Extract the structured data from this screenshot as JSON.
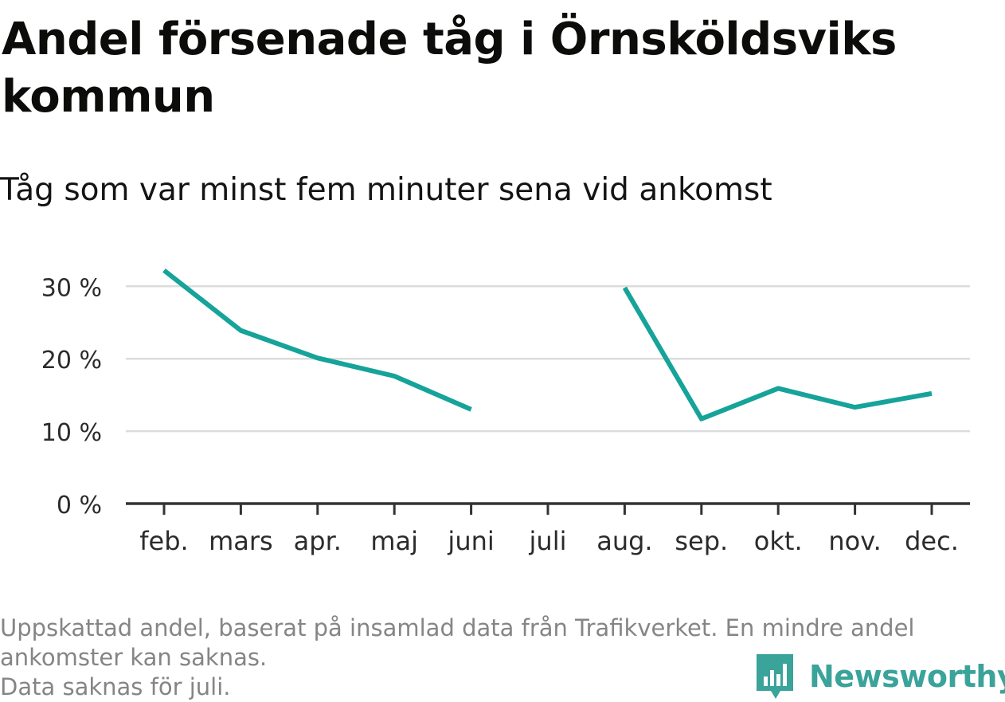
{
  "title": "Andel försenade tåg i Örnsköldsviks kommun",
  "subtitle": "Tåg som var minst fem minuter sena vid ankomst",
  "footer": {
    "note_line1": "Uppskattad andel, baserat på insamlad data från Trafikverket. En mindre andel",
    "note_line2": "ankomster kan saknas.",
    "note_line3": "Data saknas för juli."
  },
  "brand": {
    "name": "Newsworthy",
    "color": "#3aa39a",
    "icon": "bar-chart-speech-bubble-icon"
  },
  "colors": {
    "line": "#16a39a",
    "grid": "#dcdcdc",
    "axis": "#333333",
    "text": "#2b2b2b"
  },
  "chart_data": {
    "type": "line",
    "title": "Andel försenade tåg i Örnsköldsviks kommun",
    "subtitle": "Tåg som var minst fem minuter sena vid ankomst",
    "xlabel": "",
    "ylabel": "",
    "categories": [
      "feb.",
      "mars",
      "apr.",
      "maj",
      "juni",
      "juli",
      "aug.",
      "sep.",
      "okt.",
      "nov.",
      "dec."
    ],
    "series": [
      {
        "values": [
          32.2,
          23.9,
          20.1,
          17.6,
          13.0,
          null,
          29.8,
          11.7,
          15.9,
          13.3,
          15.2
        ]
      }
    ],
    "yticks": [
      0,
      10,
      20,
      30
    ],
    "ytick_labels": [
      "0 %",
      "10 %",
      "20 %",
      "30 %"
    ],
    "ylim": [
      0,
      33
    ],
    "grid": true,
    "legend": "none"
  }
}
